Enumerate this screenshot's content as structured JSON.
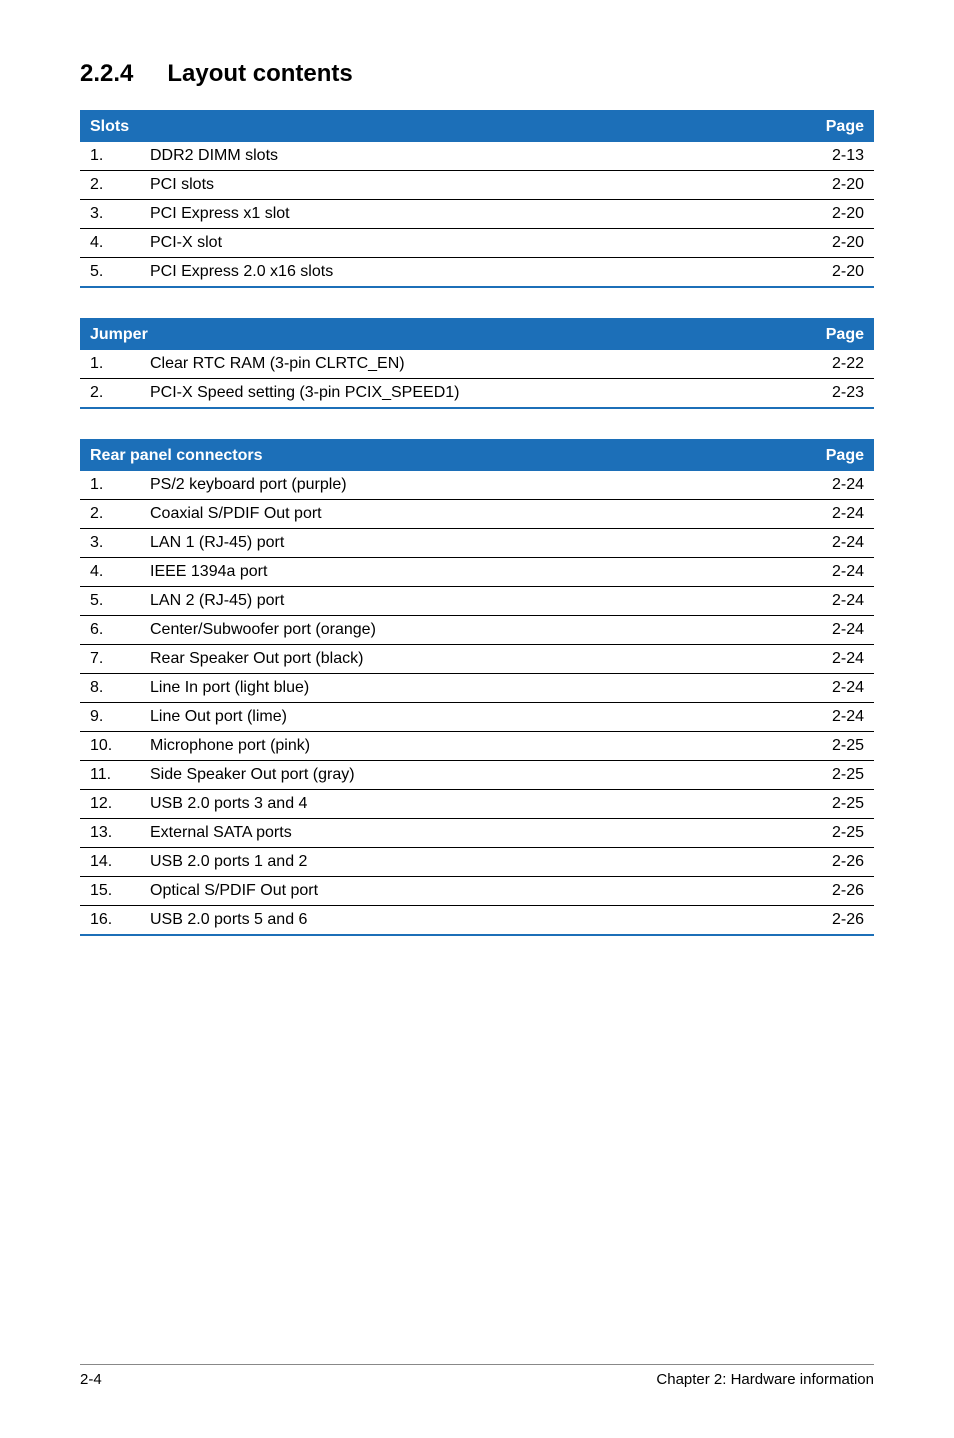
{
  "heading": {
    "number": "2.2.4",
    "title": "Layout contents"
  },
  "tables": [
    {
      "header_left": "Slots",
      "header_right": "Page",
      "rows": [
        {
          "n": "1.",
          "desc": "DDR2 DIMM slots",
          "pg": "2-13"
        },
        {
          "n": "2.",
          "desc": "PCI slots",
          "pg": "2-20"
        },
        {
          "n": "3.",
          "desc": "PCI Express x1 slot",
          "pg": "2-20"
        },
        {
          "n": "4.",
          "desc": "PCI-X slot",
          "pg": "2-20"
        },
        {
          "n": "5.",
          "desc": "PCI Express 2.0 x16 slots",
          "pg": "2-20"
        }
      ]
    },
    {
      "header_left": "Jumper",
      "header_right": "Page",
      "rows": [
        {
          "n": "1.",
          "desc": "Clear RTC RAM (3-pin CLRTC_EN)",
          "pg": "2-22"
        },
        {
          "n": "2.",
          "desc": "PCI-X Speed setting (3-pin PCIX_SPEED1)",
          "pg": "2-23"
        }
      ]
    },
    {
      "header_left": "Rear panel connectors",
      "header_right": "Page",
      "rows": [
        {
          "n": "1.",
          "desc": "PS/2 keyboard port (purple)",
          "pg": "2-24"
        },
        {
          "n": "2.",
          "desc": "Coaxial S/PDIF Out port",
          "pg": "2-24"
        },
        {
          "n": "3.",
          "desc": "LAN 1 (RJ-45) port",
          "pg": "2-24"
        },
        {
          "n": "4.",
          "desc": "IEEE 1394a port",
          "pg": "2-24"
        },
        {
          "n": "5.",
          "desc": "LAN 2 (RJ-45) port",
          "pg": "2-24"
        },
        {
          "n": "6.",
          "desc": "Center/Subwoofer port (orange)",
          "pg": "2-24"
        },
        {
          "n": "7.",
          "desc": "Rear Speaker Out port (black)",
          "pg": "2-24"
        },
        {
          "n": "8.",
          "desc": "Line In port (light blue)",
          "pg": "2-24"
        },
        {
          "n": "9.",
          "desc": "Line Out port (lime)",
          "pg": "2-24"
        },
        {
          "n": "10.",
          "desc": "Microphone port (pink)",
          "pg": "2-25"
        },
        {
          "n": "11.",
          "desc": "Side Speaker Out port (gray)",
          "pg": "2-25"
        },
        {
          "n": "12.",
          "desc": "USB 2.0 ports 3 and 4",
          "pg": "2-25"
        },
        {
          "n": "13.",
          "desc": "External SATA ports",
          "pg": "2-25"
        },
        {
          "n": "14.",
          "desc": "USB 2.0 ports 1 and 2",
          "pg": "2-26"
        },
        {
          "n": "15.",
          "desc": "Optical S/PDIF Out port",
          "pg": "2-26"
        },
        {
          "n": "16.",
          "desc": "USB 2.0 ports 5 and 6",
          "pg": "2-26"
        }
      ]
    }
  ],
  "footer": {
    "left": "2-4",
    "right": "Chapter 2: Hardware information"
  },
  "style": {
    "header_bg": "#1c6fb8",
    "header_text": "#ffffff",
    "row_border": "#000000",
    "table_border": "#1c6fb8",
    "body_text": "#000000",
    "footer_border": "#888888",
    "font_family": "Arial, Helvetica, sans-serif",
    "heading_fontsize": 24,
    "cell_fontsize": 16,
    "footer_fontsize": 15
  }
}
